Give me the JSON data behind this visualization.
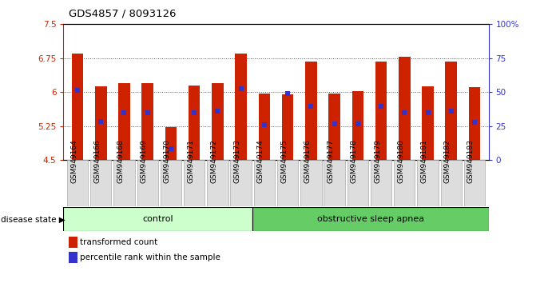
{
  "title": "GDS4857 / 8093126",
  "samples": [
    "GSM949164",
    "GSM949166",
    "GSM949168",
    "GSM949169",
    "GSM949170",
    "GSM949171",
    "GSM949172",
    "GSM949173",
    "GSM949174",
    "GSM949175",
    "GSM949176",
    "GSM949177",
    "GSM949178",
    "GSM949179",
    "GSM949180",
    "GSM949181",
    "GSM949182",
    "GSM949183"
  ],
  "bar_values": [
    6.85,
    6.12,
    6.19,
    6.19,
    5.22,
    6.15,
    6.2,
    6.85,
    5.96,
    5.95,
    6.68,
    5.97,
    6.02,
    6.68,
    6.78,
    6.12,
    6.67,
    6.1
  ],
  "blue_markers": [
    6.04,
    5.35,
    5.55,
    5.55,
    4.75,
    5.55,
    5.57,
    6.07,
    5.28,
    5.96,
    5.68,
    5.29,
    5.3,
    5.68,
    5.55,
    5.55,
    5.57,
    5.33
  ],
  "bar_bottom": 4.5,
  "ylim": [
    4.5,
    7.5
  ],
  "yticks": [
    4.5,
    5.25,
    6.0,
    6.75,
    7.5
  ],
  "ytick_labels": [
    "4.5",
    "5.25",
    "6",
    "6.75",
    "7.5"
  ],
  "right_yticks": [
    0,
    25,
    50,
    75,
    100
  ],
  "right_ytick_labels": [
    "0",
    "25",
    "50",
    "75",
    "100%"
  ],
  "bar_color": "#cc2200",
  "blue_color": "#3333cc",
  "n_control": 8,
  "n_osa": 10,
  "control_label": "control",
  "osa_label": "obstructive sleep apnea",
  "disease_state_label": "disease state",
  "legend_bar_label": "transformed count",
  "legend_marker_label": "percentile rank within the sample",
  "control_color": "#ccffcc",
  "osa_color": "#66cc66",
  "grid_color": "#555555",
  "background_color": "#ffffff",
  "axis_color_left": "#cc2200",
  "axis_color_right": "#3333cc",
  "tick_label_bg": "#dddddd",
  "bar_width": 0.5
}
